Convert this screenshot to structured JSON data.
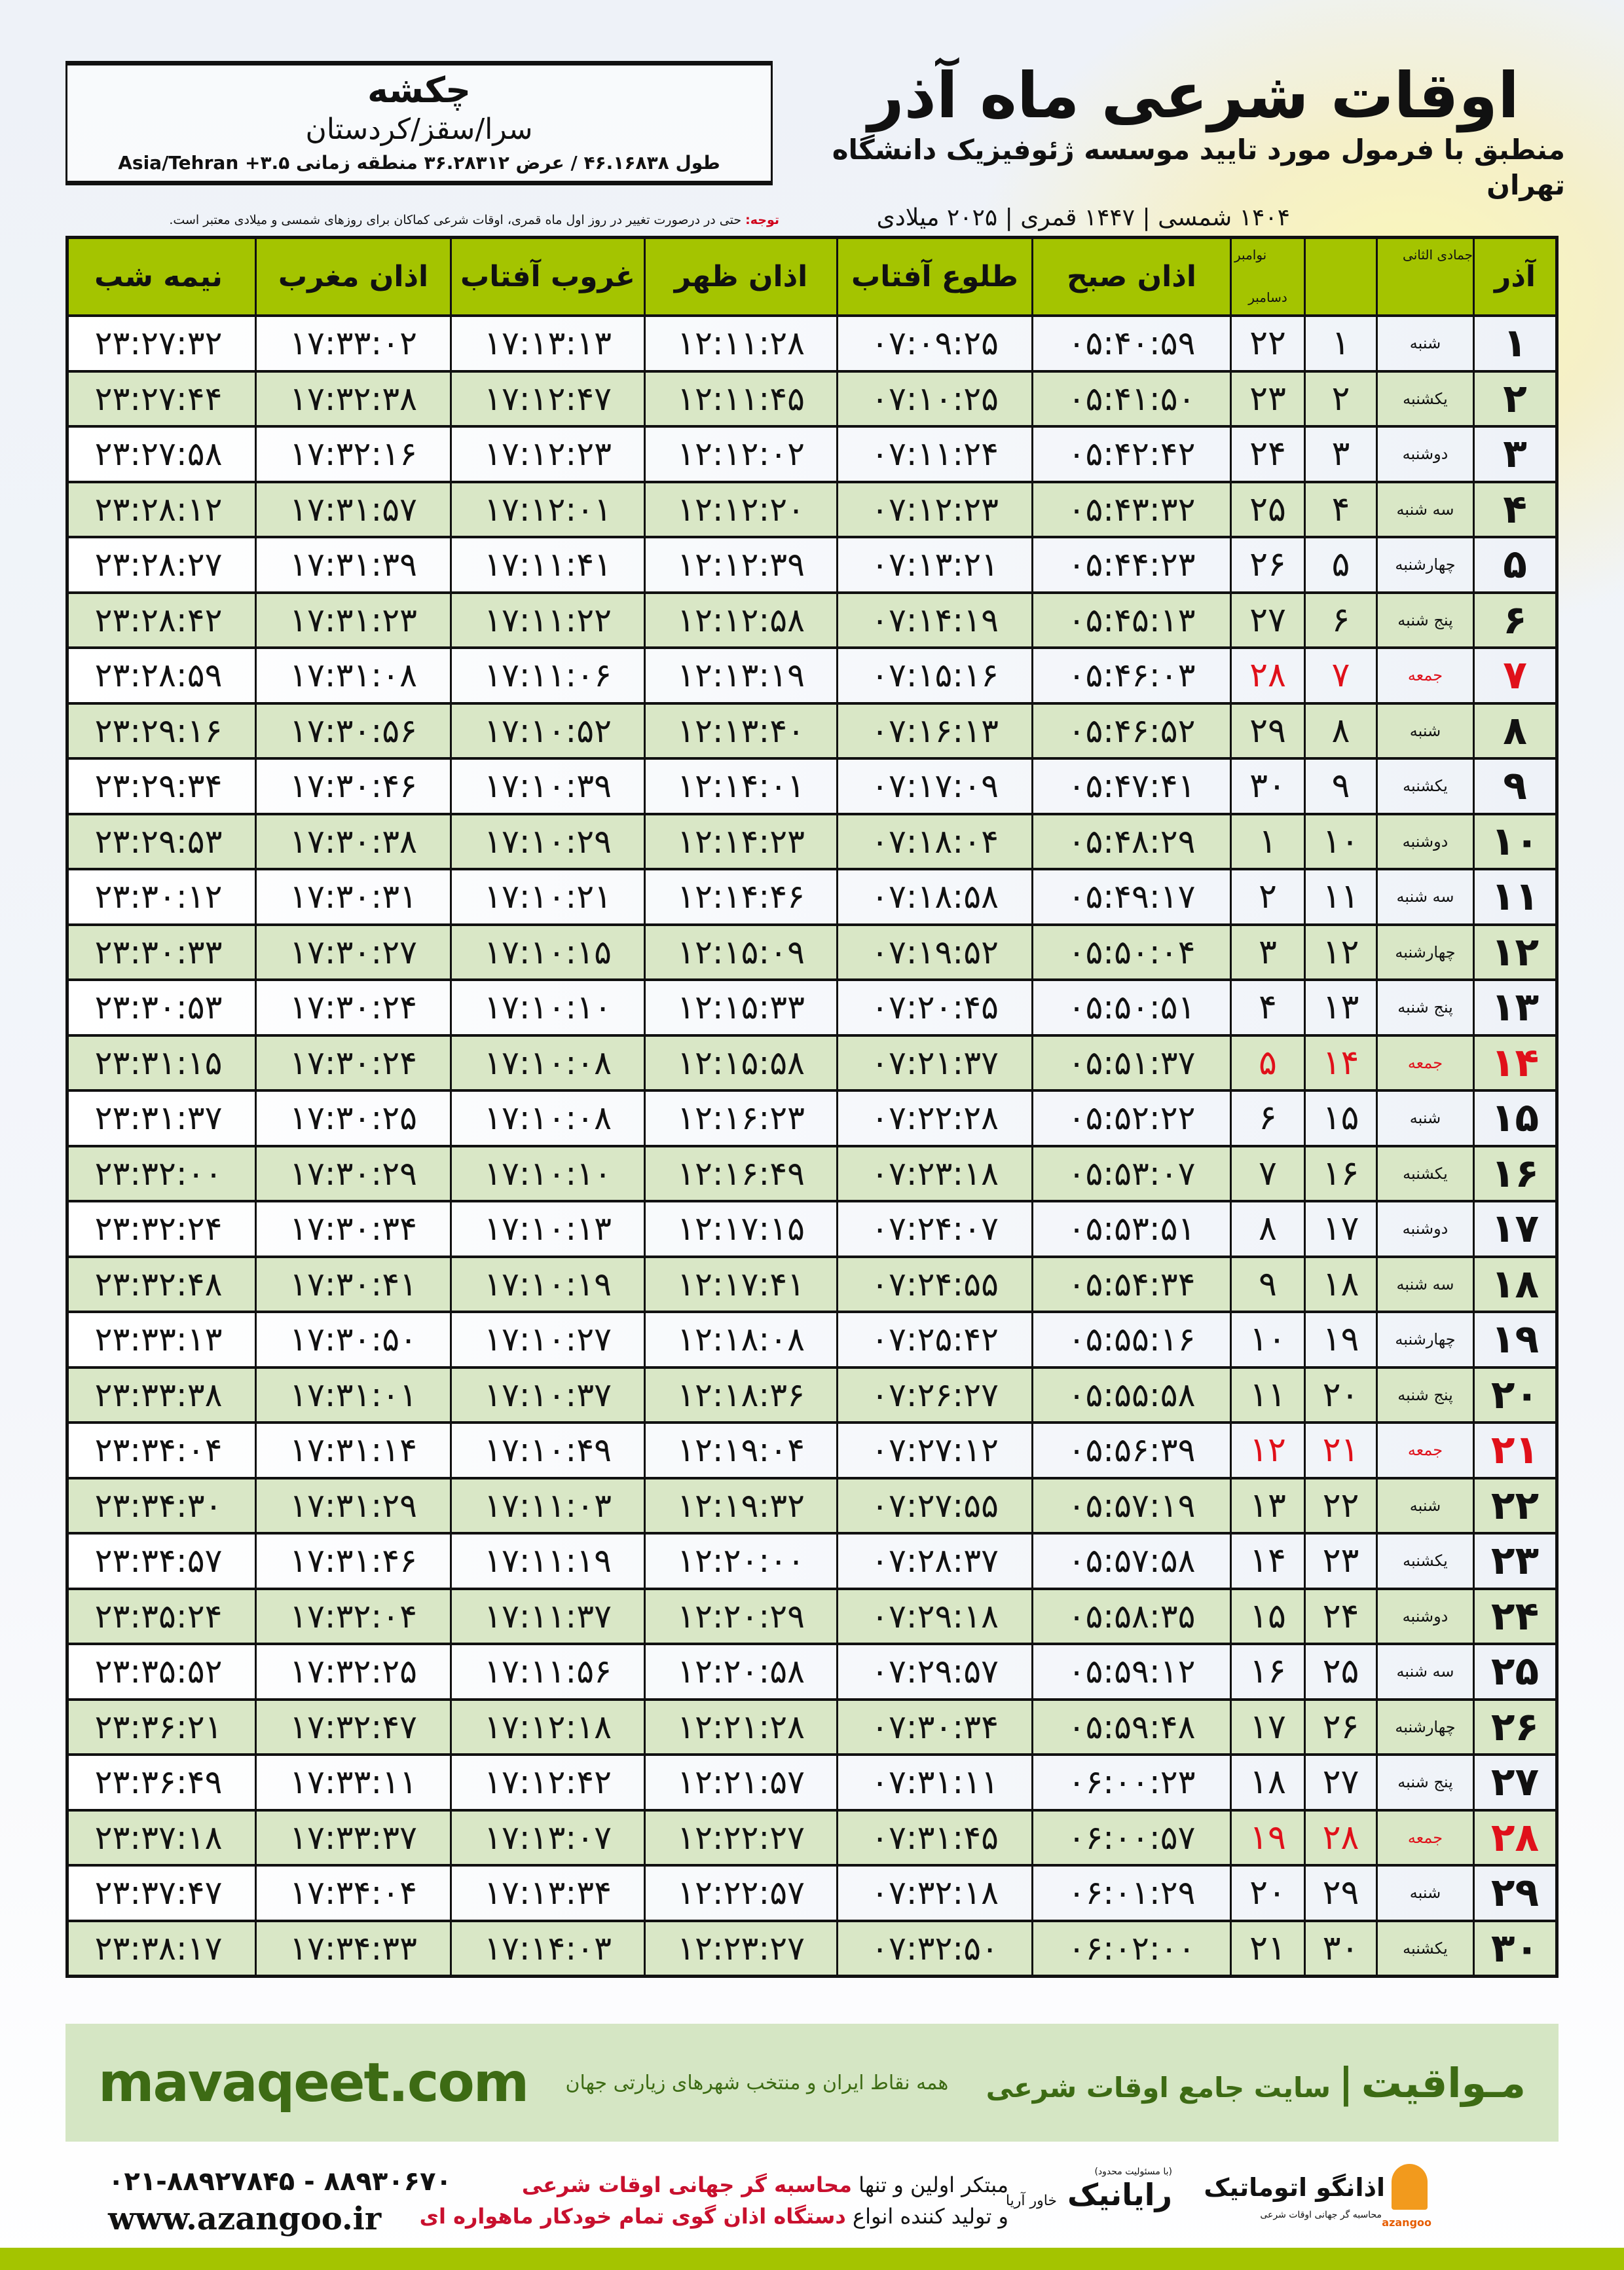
{
  "location": {
    "city": "چکشه",
    "region": "سرا/سقز/کردستان",
    "coords": "طول ۴۶.۱۶۸۳۸ / عرض ۳۶.۲۸۳۱۲ منطقه زمانی ۳.۵+ Asia/Tehran"
  },
  "header": {
    "title": "اوقات شرعی ماه آذر",
    "subtitle": "منطبق با فرمول مورد تایید موسسه ژئوفیزیک دانشگاه تهران",
    "years": "۱۴۰۴ شمسی | ۱۴۴۷ قمری | ۲۰۲۵ میلادی"
  },
  "note": {
    "label": "توجه:",
    "text": " حتی در درصورت تغییر در روز اول ماه قمری، اوقات شرعی کماکان برای روزهای شمسی و میلادی معتبر است."
  },
  "table": {
    "headers": {
      "month": "آذر",
      "hijri": "جمادی الثانی",
      "gregorian_top": "نوامبر",
      "gregorian_bottom": "دسامبر",
      "fajr": "اذان صبح",
      "sunrise": "طلوع آفتاب",
      "dhuhr": "اذان ظهر",
      "sunset": "غروب آفتاب",
      "maghrib": "اذان مغرب",
      "midnight": "نیمه شب"
    },
    "friday_color": "#e0101a",
    "header_color": "#a4c400",
    "rows": [
      [
        "۱",
        "شنبه",
        "۱",
        "۲۲",
        "۰۵:۴۰:۵۹",
        "۰۷:۰۹:۲۵",
        "۱۲:۱۱:۲۸",
        "۱۷:۱۳:۱۳",
        "۱۷:۳۳:۰۲",
        "۲۳:۲۷:۳۲"
      ],
      [
        "۲",
        "یکشنبه",
        "۲",
        "۲۳",
        "۰۵:۴۱:۵۰",
        "۰۷:۱۰:۲۵",
        "۱۲:۱۱:۴۵",
        "۱۷:۱۲:۴۷",
        "۱۷:۳۲:۳۸",
        "۲۳:۲۷:۴۴"
      ],
      [
        "۳",
        "دوشنبه",
        "۳",
        "۲۴",
        "۰۵:۴۲:۴۲",
        "۰۷:۱۱:۲۴",
        "۱۲:۱۲:۰۲",
        "۱۷:۱۲:۲۳",
        "۱۷:۳۲:۱۶",
        "۲۳:۲۷:۵۸"
      ],
      [
        "۴",
        "سه شنبه",
        "۴",
        "۲۵",
        "۰۵:۴۳:۳۲",
        "۰۷:۱۲:۲۳",
        "۱۲:۱۲:۲۰",
        "۱۷:۱۲:۰۱",
        "۱۷:۳۱:۵۷",
        "۲۳:۲۸:۱۲"
      ],
      [
        "۵",
        "چهارشنبه",
        "۵",
        "۲۶",
        "۰۵:۴۴:۲۳",
        "۰۷:۱۳:۲۱",
        "۱۲:۱۲:۳۹",
        "۱۷:۱۱:۴۱",
        "۱۷:۳۱:۳۹",
        "۲۳:۲۸:۲۷"
      ],
      [
        "۶",
        "پنج شنبه",
        "۶",
        "۲۷",
        "۰۵:۴۵:۱۳",
        "۰۷:۱۴:۱۹",
        "۱۲:۱۲:۵۸",
        "۱۷:۱۱:۲۲",
        "۱۷:۳۱:۲۳",
        "۲۳:۲۸:۴۲"
      ],
      [
        "۷",
        "جمعه",
        "۷",
        "۲۸",
        "۰۵:۴۶:۰۳",
        "۰۷:۱۵:۱۶",
        "۱۲:۱۳:۱۹",
        "۱۷:۱۱:۰۶",
        "۱۷:۳۱:۰۸",
        "۲۳:۲۸:۵۹"
      ],
      [
        "۸",
        "شنبه",
        "۸",
        "۲۹",
        "۰۵:۴۶:۵۲",
        "۰۷:۱۶:۱۳",
        "۱۲:۱۳:۴۰",
        "۱۷:۱۰:۵۲",
        "۱۷:۳۰:۵۶",
        "۲۳:۲۹:۱۶"
      ],
      [
        "۹",
        "یکشنبه",
        "۹",
        "۳۰",
        "۰۵:۴۷:۴۱",
        "۰۷:۱۷:۰۹",
        "۱۲:۱۴:۰۱",
        "۱۷:۱۰:۳۹",
        "۱۷:۳۰:۴۶",
        "۲۳:۲۹:۳۴"
      ],
      [
        "۱۰",
        "دوشنبه",
        "۱۰",
        "۱",
        "۰۵:۴۸:۲۹",
        "۰۷:۱۸:۰۴",
        "۱۲:۱۴:۲۳",
        "۱۷:۱۰:۲۹",
        "۱۷:۳۰:۳۸",
        "۲۳:۲۹:۵۳"
      ],
      [
        "۱۱",
        "سه شنبه",
        "۱۱",
        "۲",
        "۰۵:۴۹:۱۷",
        "۰۷:۱۸:۵۸",
        "۱۲:۱۴:۴۶",
        "۱۷:۱۰:۲۱",
        "۱۷:۳۰:۳۱",
        "۲۳:۳۰:۱۲"
      ],
      [
        "۱۲",
        "چهارشنبه",
        "۱۲",
        "۳",
        "۰۵:۵۰:۰۴",
        "۰۷:۱۹:۵۲",
        "۱۲:۱۵:۰۹",
        "۱۷:۱۰:۱۵",
        "۱۷:۳۰:۲۷",
        "۲۳:۳۰:۳۳"
      ],
      [
        "۱۳",
        "پنج شنبه",
        "۱۳",
        "۴",
        "۰۵:۵۰:۵۱",
        "۰۷:۲۰:۴۵",
        "۱۲:۱۵:۳۳",
        "۱۷:۱۰:۱۰",
        "۱۷:۳۰:۲۴",
        "۲۳:۳۰:۵۳"
      ],
      [
        "۱۴",
        "جمعه",
        "۱۴",
        "۵",
        "۰۵:۵۱:۳۷",
        "۰۷:۲۱:۳۷",
        "۱۲:۱۵:۵۸",
        "۱۷:۱۰:۰۸",
        "۱۷:۳۰:۲۴",
        "۲۳:۳۱:۱۵"
      ],
      [
        "۱۵",
        "شنبه",
        "۱۵",
        "۶",
        "۰۵:۵۲:۲۲",
        "۰۷:۲۲:۲۸",
        "۱۲:۱۶:۲۳",
        "۱۷:۱۰:۰۸",
        "۱۷:۳۰:۲۵",
        "۲۳:۳۱:۳۷"
      ],
      [
        "۱۶",
        "یکشنبه",
        "۱۶",
        "۷",
        "۰۵:۵۳:۰۷",
        "۰۷:۲۳:۱۸",
        "۱۲:۱۶:۴۹",
        "۱۷:۱۰:۱۰",
        "۱۷:۳۰:۲۹",
        "۲۳:۳۲:۰۰"
      ],
      [
        "۱۷",
        "دوشنبه",
        "۱۷",
        "۸",
        "۰۵:۵۳:۵۱",
        "۰۷:۲۴:۰۷",
        "۱۲:۱۷:۱۵",
        "۱۷:۱۰:۱۳",
        "۱۷:۳۰:۳۴",
        "۲۳:۳۲:۲۴"
      ],
      [
        "۱۸",
        "سه شنبه",
        "۱۸",
        "۹",
        "۰۵:۵۴:۳۴",
        "۰۷:۲۴:۵۵",
        "۱۲:۱۷:۴۱",
        "۱۷:۱۰:۱۹",
        "۱۷:۳۰:۴۱",
        "۲۳:۳۲:۴۸"
      ],
      [
        "۱۹",
        "چهارشنبه",
        "۱۹",
        "۱۰",
        "۰۵:۵۵:۱۶",
        "۰۷:۲۵:۴۲",
        "۱۲:۱۸:۰۸",
        "۱۷:۱۰:۲۷",
        "۱۷:۳۰:۵۰",
        "۲۳:۳۳:۱۳"
      ],
      [
        "۲۰",
        "پنج شنبه",
        "۲۰",
        "۱۱",
        "۰۵:۵۵:۵۸",
        "۰۷:۲۶:۲۷",
        "۱۲:۱۸:۳۶",
        "۱۷:۱۰:۳۷",
        "۱۷:۳۱:۰۱",
        "۲۳:۳۳:۳۸"
      ],
      [
        "۲۱",
        "جمعه",
        "۲۱",
        "۱۲",
        "۰۵:۵۶:۳۹",
        "۰۷:۲۷:۱۲",
        "۱۲:۱۹:۰۴",
        "۱۷:۱۰:۴۹",
        "۱۷:۳۱:۱۴",
        "۲۳:۳۴:۰۴"
      ],
      [
        "۲۲",
        "شنبه",
        "۲۲",
        "۱۳",
        "۰۵:۵۷:۱۹",
        "۰۷:۲۷:۵۵",
        "۱۲:۱۹:۳۲",
        "۱۷:۱۱:۰۳",
        "۱۷:۳۱:۲۹",
        "۲۳:۳۴:۳۰"
      ],
      [
        "۲۳",
        "یکشنبه",
        "۲۳",
        "۱۴",
        "۰۵:۵۷:۵۸",
        "۰۷:۲۸:۳۷",
        "۱۲:۲۰:۰۰",
        "۱۷:۱۱:۱۹",
        "۱۷:۳۱:۴۶",
        "۲۳:۳۴:۵۷"
      ],
      [
        "۲۴",
        "دوشنبه",
        "۲۴",
        "۱۵",
        "۰۵:۵۸:۳۵",
        "۰۷:۲۹:۱۸",
        "۱۲:۲۰:۲۹",
        "۱۷:۱۱:۳۷",
        "۱۷:۳۲:۰۴",
        "۲۳:۳۵:۲۴"
      ],
      [
        "۲۵",
        "سه شنبه",
        "۲۵",
        "۱۶",
        "۰۵:۵۹:۱۲",
        "۰۷:۲۹:۵۷",
        "۱۲:۲۰:۵۸",
        "۱۷:۱۱:۵۶",
        "۱۷:۳۲:۲۵",
        "۲۳:۳۵:۵۲"
      ],
      [
        "۲۶",
        "چهارشنبه",
        "۲۶",
        "۱۷",
        "۰۵:۵۹:۴۸",
        "۰۷:۳۰:۳۴",
        "۱۲:۲۱:۲۸",
        "۱۷:۱۲:۱۸",
        "۱۷:۳۲:۴۷",
        "۲۳:۳۶:۲۱"
      ],
      [
        "۲۷",
        "پنج شنبه",
        "۲۷",
        "۱۸",
        "۰۶:۰۰:۲۳",
        "۰۷:۳۱:۱۱",
        "۱۲:۲۱:۵۷",
        "۱۷:۱۲:۴۲",
        "۱۷:۳۳:۱۱",
        "۲۳:۳۶:۴۹"
      ],
      [
        "۲۸",
        "جمعه",
        "۲۸",
        "۱۹",
        "۰۶:۰۰:۵۷",
        "۰۷:۳۱:۴۵",
        "۱۲:۲۲:۲۷",
        "۱۷:۱۳:۰۷",
        "۱۷:۳۳:۳۷",
        "۲۳:۳۷:۱۸"
      ],
      [
        "۲۹",
        "شنبه",
        "۲۹",
        "۲۰",
        "۰۶:۰۱:۲۹",
        "۰۷:۳۲:۱۸",
        "۱۲:۲۲:۵۷",
        "۱۷:۱۳:۳۴",
        "۱۷:۳۴:۰۴",
        "۲۳:۳۷:۴۷"
      ],
      [
        "۳۰",
        "یکشنبه",
        "۳۰",
        "۲۱",
        "۰۶:۰۲:۰۰",
        "۰۷:۳۲:۵۰",
        "۱۲:۲۳:۲۷",
        "۱۷:۱۴:۰۳",
        "۱۷:۳۴:۳۳",
        "۲۳:۳۸:۱۷"
      ]
    ]
  },
  "banner": {
    "brand": "مـواقیت",
    "brand_sub": "سایت جامع اوقات شرعی",
    "separator": "|",
    "tagline": "همه نقاط ایران و منتخب شهرهای زیارتی جهان",
    "site": "mavaqeet.com",
    "color": "#3d6b14"
  },
  "footer": {
    "phone": "۰۲۱-۸۸۹۲۷۸۴۵ - ۸۸۹۳۰۶۷۰",
    "web": "www.azangoo.ir",
    "slogan_1a": "مبتکر اولین و تنها ",
    "slogan_1b": "محاسبه گر جهانی اوقات شرعی",
    "slogan_2a": "و تولید کننده انواع ",
    "slogan_2b": "دستگاه اذان گوی تمام خودکار ماهواره ای",
    "rayanik_small": "(با مسئولیت محدود)",
    "rayanik": "رایانیک",
    "rayanik_side": "خاور آریا",
    "azangoo_name": "اذانگو اتوماتیک",
    "azangoo_caption": "محاسبه گر جهانی اوقات شرعی",
    "azangoo_latin": "azangoo"
  }
}
